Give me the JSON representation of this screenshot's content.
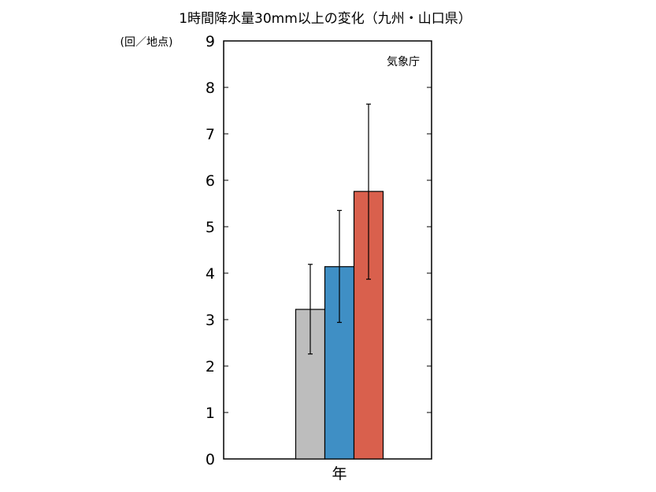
{
  "chart_data": {
    "type": "bar",
    "title": "1時間降水量30mm以上の変化（九州・山口県）",
    "ylabel": "(回／地点)",
    "source_label": "気象庁",
    "categories": [
      "年"
    ],
    "ylim": [
      0,
      9
    ],
    "yticks": [
      0,
      1,
      2,
      3,
      4,
      5,
      6,
      7,
      8,
      9
    ],
    "grid": false,
    "series": [
      {
        "color": "#bdbdbd",
        "values": [
          3.22
        ],
        "error_low": [
          2.26
        ],
        "error_high": [
          4.19
        ]
      },
      {
        "color": "#3f8fc5",
        "values": [
          4.14
        ],
        "error_low": [
          2.94
        ],
        "error_high": [
          5.35
        ]
      },
      {
        "color": "#d9604d",
        "values": [
          5.76
        ],
        "error_low": [
          3.87
        ],
        "error_high": [
          7.64
        ]
      }
    ]
  }
}
